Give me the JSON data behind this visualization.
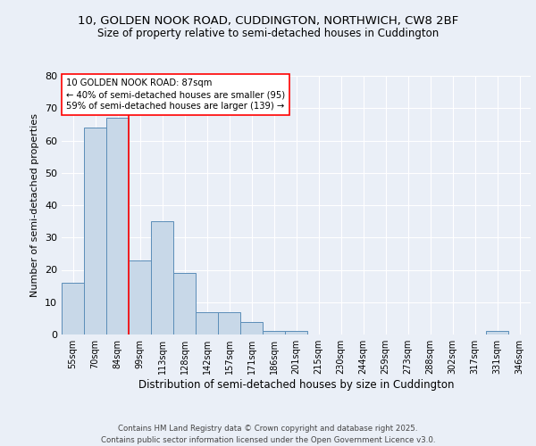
{
  "title1": "10, GOLDEN NOOK ROAD, CUDDINGTON, NORTHWICH, CW8 2BF",
  "title2": "Size of property relative to semi-detached houses in Cuddington",
  "xlabel": "Distribution of semi-detached houses by size in Cuddington",
  "ylabel": "Number of semi-detached properties",
  "categories": [
    "55sqm",
    "70sqm",
    "84sqm",
    "99sqm",
    "113sqm",
    "128sqm",
    "142sqm",
    "157sqm",
    "171sqm",
    "186sqm",
    "201sqm",
    "215sqm",
    "230sqm",
    "244sqm",
    "259sqm",
    "273sqm",
    "288sqm",
    "302sqm",
    "317sqm",
    "331sqm",
    "346sqm"
  ],
  "values": [
    16,
    64,
    67,
    23,
    35,
    19,
    7,
    7,
    4,
    1,
    1,
    0,
    0,
    0,
    0,
    0,
    0,
    0,
    0,
    1,
    0
  ],
  "bar_color": "#c8d8e8",
  "bar_edge_color": "#5b8db8",
  "red_line_x": 2.5,
  "annotation_title": "10 GOLDEN NOOK ROAD: 87sqm",
  "annotation_line1": "← 40% of semi-detached houses are smaller (95)",
  "annotation_line2": "59% of semi-detached houses are larger (139) →",
  "footer1": "Contains HM Land Registry data © Crown copyright and database right 2025.",
  "footer2": "Contains public sector information licensed under the Open Government Licence v3.0.",
  "ylim": [
    0,
    80
  ],
  "yticks": [
    0,
    10,
    20,
    30,
    40,
    50,
    60,
    70,
    80
  ],
  "bg_color": "#eaeff7",
  "grid_color": "#ffffff",
  "title_fontsize": 9.5,
  "subtitle_fontsize": 8.5,
  "bar_fontsize": 7,
  "ylabel_fontsize": 8,
  "xlabel_fontsize": 8.5
}
